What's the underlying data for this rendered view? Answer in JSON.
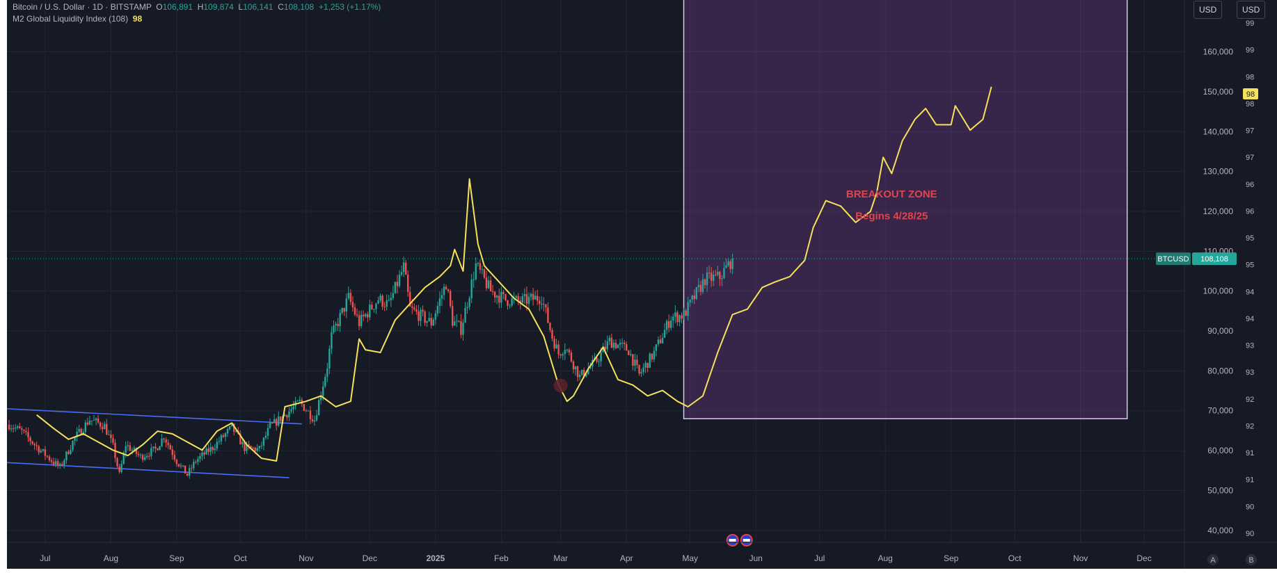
{
  "legend": {
    "symbol": "Bitcoin / U.S. Dollar · 1D · BITSTAMP",
    "o_label": "O",
    "o_value": "106,891",
    "h_label": "H",
    "h_value": "109,874",
    "l_label": "L",
    "l_value": "106,141",
    "c_label": "C",
    "c_value": "108,108",
    "change": "+1,253 (+1.17%)",
    "indicator": "M2 Global Liquidity Index (108)",
    "indicator_value": "98"
  },
  "toolbar": {
    "currency_left": "USD",
    "currency_right": "USD"
  },
  "price_badge": {
    "symbol": "BTCUSD",
    "value": "108,108"
  },
  "m2_badge": "98",
  "footer": {
    "mode_a": "A",
    "mode_b": "B"
  },
  "chart_data": {
    "type": "line",
    "x_axis": {
      "ticks": [
        "Jul",
        "Aug",
        "Sep",
        "Oct",
        "Nov",
        "Dec",
        "2025",
        "Feb",
        "Mar",
        "Apr",
        "May",
        "Jun",
        "Jul",
        "Aug",
        "Sep",
        "Oct",
        "Nov",
        "Dec"
      ],
      "tick_dates": [
        "2024-07-01",
        "2024-08-01",
        "2024-09-01",
        "2024-10-01",
        "2024-11-01",
        "2024-12-01",
        "2025-01-01",
        "2025-02-01",
        "2025-03-01",
        "2025-04-01",
        "2025-05-01",
        "2025-06-01",
        "2025-07-01",
        "2025-08-01",
        "2025-09-01",
        "2025-10-01",
        "2025-11-01",
        "2025-12-01"
      ],
      "range": [
        "2024-06-13",
        "2025-12-20"
      ]
    },
    "y_axis_left_price": {
      "ticks": [
        40000,
        50000,
        60000,
        70000,
        80000,
        90000,
        100000,
        110000,
        120000,
        130000,
        140000,
        150000,
        160000
      ],
      "tick_labels": [
        "40,000",
        "50,000",
        "60,000",
        "70,000",
        "80,000",
        "90,000",
        "100,000",
        "110,000",
        "120,000",
        "130,000",
        "140,000",
        "150,000",
        "160,000"
      ],
      "range": [
        37000,
        173000
      ]
    },
    "y_axis_right_m2": {
      "tick_labels": [
        "90",
        "90",
        "91",
        "91",
        "92",
        "92",
        "93",
        "93",
        "94",
        "94",
        "95",
        "95",
        "96",
        "96",
        "97",
        "97",
        "98",
        "98",
        "99",
        "99"
      ],
      "range": [
        89.5,
        99.5
      ]
    },
    "series": [
      {
        "name": "Bitcoin / U.S. Dollar",
        "kind": "candlestick",
        "color_up": "#26a69a",
        "color_down": "#ef5350",
        "points": [
          [
            "2024-06-14",
            66500
          ],
          [
            "2024-06-20",
            64800
          ],
          [
            "2024-06-26",
            61500
          ],
          [
            "2024-07-04",
            57500
          ],
          [
            "2024-07-08",
            55800
          ],
          [
            "2024-07-15",
            63200
          ],
          [
            "2024-07-22",
            67800
          ],
          [
            "2024-07-29",
            66200
          ],
          [
            "2024-08-02",
            61000
          ],
          [
            "2024-08-05",
            53900
          ],
          [
            "2024-08-08",
            61500
          ],
          [
            "2024-08-15",
            58400
          ],
          [
            "2024-08-22",
            60300
          ],
          [
            "2024-08-26",
            63600
          ],
          [
            "2024-09-01",
            57400
          ],
          [
            "2024-09-06",
            53900
          ],
          [
            "2024-09-10",
            57500
          ],
          [
            "2024-09-18",
            60800
          ],
          [
            "2024-09-27",
            65800
          ],
          [
            "2024-10-03",
            60700
          ],
          [
            "2024-10-10",
            60300
          ],
          [
            "2024-10-15",
            66000
          ],
          [
            "2024-10-21",
            68500
          ],
          [
            "2024-10-29",
            72200
          ],
          [
            "2024-11-05",
            67800
          ],
          [
            "2024-11-11",
            81300
          ],
          [
            "2024-11-13",
            88700
          ],
          [
            "2024-11-21",
            98300
          ],
          [
            "2024-11-26",
            92000
          ],
          [
            "2024-12-05",
            98000
          ],
          [
            "2024-12-10",
            96500
          ],
          [
            "2024-12-17",
            106000
          ],
          [
            "2024-12-20",
            95500
          ],
          [
            "2024-12-30",
            92000
          ],
          [
            "2025-01-06",
            102000
          ],
          [
            "2025-01-09",
            92500
          ],
          [
            "2025-01-13",
            90500
          ],
          [
            "2025-01-20",
            106500
          ],
          [
            "2025-01-27",
            100000
          ],
          [
            "2025-02-03",
            97800
          ],
          [
            "2025-02-10",
            97400
          ],
          [
            "2025-02-20",
            98500
          ],
          [
            "2025-02-25",
            88500
          ],
          [
            "2025-02-28",
            84300
          ],
          [
            "2025-03-03",
            86200
          ],
          [
            "2025-03-10",
            78500
          ],
          [
            "2025-03-18",
            82600
          ],
          [
            "2025-03-24",
            87500
          ],
          [
            "2025-04-02",
            85200
          ],
          [
            "2025-04-07",
            79000
          ],
          [
            "2025-04-14",
            84500
          ],
          [
            "2025-04-22",
            93400
          ],
          [
            "2025-04-28",
            94000
          ],
          [
            "2025-05-08",
            103000
          ],
          [
            "2025-05-15",
            103500
          ],
          [
            "2025-05-21",
            108108
          ]
        ]
      },
      {
        "name": "M2 Global Liquidity Index (108)",
        "color": "#f6e15a",
        "points": [
          [
            "2024-06-27",
            91.85
          ],
          [
            "2024-07-05",
            91.6
          ],
          [
            "2024-07-12",
            91.4
          ],
          [
            "2024-07-19",
            91.5
          ],
          [
            "2024-07-26",
            91.35
          ],
          [
            "2024-08-02",
            91.2
          ],
          [
            "2024-08-09",
            91.1
          ],
          [
            "2024-08-16",
            91.3
          ],
          [
            "2024-08-23",
            91.55
          ],
          [
            "2024-08-30",
            91.5
          ],
          [
            "2024-09-06",
            91.35
          ],
          [
            "2024-09-13",
            91.2
          ],
          [
            "2024-09-20",
            91.55
          ],
          [
            "2024-09-27",
            91.7
          ],
          [
            "2024-10-04",
            91.3
          ],
          [
            "2024-10-11",
            91.05
          ],
          [
            "2024-10-18",
            91.0
          ],
          [
            "2024-10-22",
            92.0
          ],
          [
            "2024-11-01",
            92.1
          ],
          [
            "2024-11-08",
            92.2
          ],
          [
            "2024-11-15",
            92.0
          ],
          [
            "2024-11-22",
            92.1
          ],
          [
            "2024-11-26",
            93.25
          ],
          [
            "2024-11-29",
            93.05
          ],
          [
            "2024-12-06",
            93.0
          ],
          [
            "2024-12-13",
            93.6
          ],
          [
            "2024-12-20",
            93.9
          ],
          [
            "2024-12-27",
            94.2
          ],
          [
            "2025-01-03",
            94.4
          ],
          [
            "2025-01-08",
            94.6
          ],
          [
            "2025-01-10",
            94.9
          ],
          [
            "2025-01-14",
            94.5
          ],
          [
            "2025-01-17",
            96.2
          ],
          [
            "2025-01-21",
            95.0
          ],
          [
            "2025-01-24",
            94.6
          ],
          [
            "2025-01-31",
            94.3
          ],
          [
            "2025-02-07",
            94.0
          ],
          [
            "2025-02-14",
            93.8
          ],
          [
            "2025-02-21",
            93.3
          ],
          [
            "2025-02-28",
            92.4
          ],
          [
            "2025-03-04",
            92.1
          ],
          [
            "2025-03-07",
            92.2
          ],
          [
            "2025-03-14",
            92.7
          ],
          [
            "2025-03-21",
            93.1
          ],
          [
            "2025-03-28",
            92.5
          ],
          [
            "2025-04-04",
            92.4
          ],
          [
            "2025-04-11",
            92.2
          ],
          [
            "2025-04-18",
            92.3
          ],
          [
            "2025-04-25",
            92.1
          ],
          [
            "2025-04-30",
            92.0
          ],
          [
            "2025-05-07",
            92.2
          ],
          [
            "2025-05-14",
            93.0
          ],
          [
            "2025-05-21",
            93.7
          ],
          [
            "2025-05-28",
            93.8
          ],
          [
            "2025-06-04",
            94.2
          ],
          [
            "2025-06-10",
            94.3
          ],
          [
            "2025-06-17",
            94.4
          ],
          [
            "2025-06-24",
            94.7
          ],
          [
            "2025-06-28",
            95.3
          ],
          [
            "2025-07-04",
            95.8
          ],
          [
            "2025-07-11",
            95.7
          ],
          [
            "2025-07-18",
            95.4
          ],
          [
            "2025-07-25",
            95.6
          ],
          [
            "2025-07-28",
            95.95
          ],
          [
            "2025-07-31",
            96.6
          ],
          [
            "2025-08-04",
            96.3
          ],
          [
            "2025-08-09",
            96.9
          ],
          [
            "2025-08-15",
            97.3
          ],
          [
            "2025-08-20",
            97.5
          ],
          [
            "2025-08-25",
            97.2
          ],
          [
            "2025-09-01",
            97.2
          ],
          [
            "2025-09-03",
            97.55
          ],
          [
            "2025-09-10",
            97.1
          ],
          [
            "2025-09-16",
            97.3
          ],
          [
            "2025-09-20",
            97.9
          ]
        ]
      }
    ],
    "channel_lines": [
      {
        "color": "#4a6cf7",
        "from": [
          "2024-06-13",
          70500
        ],
        "to": [
          "2024-10-30",
          66700
        ]
      },
      {
        "color": "#4a6cf7",
        "from": [
          "2024-06-13",
          57000
        ],
        "to": [
          "2024-10-24",
          53200
        ]
      }
    ],
    "shaded_zone": {
      "from": [
        "2025-04-28",
        68000
      ],
      "to": [
        "2025-11-23",
        190000
      ],
      "color": "#8e44ad"
    },
    "annotations": [
      {
        "text": "BREAKOUT ZONE",
        "at": [
          "2025-08-04",
          123500
        ]
      },
      {
        "text": "Begins 4/28/25",
        "at": [
          "2025-08-04",
          118000
        ]
      }
    ],
    "current_price": 108108,
    "grid": true
  }
}
